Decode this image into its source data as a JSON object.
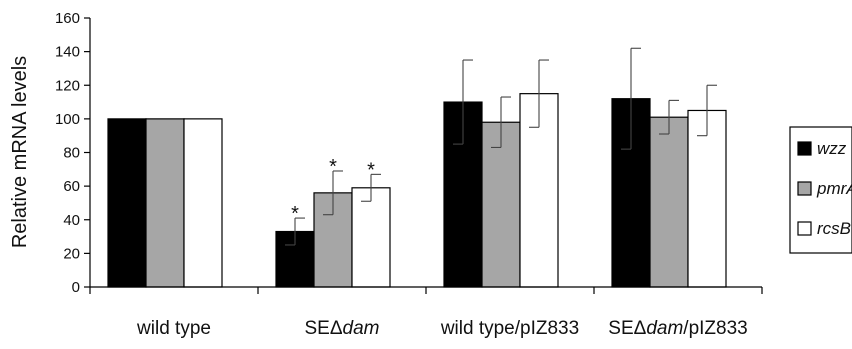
{
  "chart_data": {
    "type": "bar",
    "ylabel": "Relative mRNA levels",
    "ylim": [
      0,
      160
    ],
    "yticks": [
      0,
      20,
      40,
      60,
      80,
      100,
      120,
      140,
      160
    ],
    "grid": false,
    "legend_position": "right",
    "categories": [
      {
        "parts": [
          {
            "text": "wild type",
            "italic": false
          }
        ]
      },
      {
        "parts": [
          {
            "text": "SE",
            "italic": false
          },
          {
            "text": "Δ",
            "italic": false
          },
          {
            "text": "dam",
            "italic": true
          }
        ]
      },
      {
        "parts": [
          {
            "text": "wild type/pIZ833",
            "italic": false
          }
        ]
      },
      {
        "parts": [
          {
            "text": "SE",
            "italic": false
          },
          {
            "text": "Δ",
            "italic": false
          },
          {
            "text": "dam",
            "italic": true
          },
          {
            "text": "/pIZ833",
            "italic": false
          }
        ]
      }
    ],
    "series": [
      {
        "name": "wzz",
        "color": "#000000",
        "values": [
          100,
          33,
          110,
          112
        ],
        "errors": [
          0,
          8,
          25,
          30
        ],
        "significance": [
          "",
          "*",
          "",
          ""
        ]
      },
      {
        "name": "pmrA",
        "color": "#a6a6a6",
        "values": [
          100,
          56,
          98,
          101
        ],
        "errors": [
          0,
          13,
          15,
          10
        ],
        "significance": [
          "",
          "*",
          "",
          ""
        ]
      },
      {
        "name": "rcsB",
        "color": "#ffffff",
        "values": [
          100,
          59,
          115,
          105
        ],
        "errors": [
          0,
          8,
          20,
          15
        ],
        "significance": [
          "",
          "*",
          "",
          ""
        ]
      }
    ]
  }
}
